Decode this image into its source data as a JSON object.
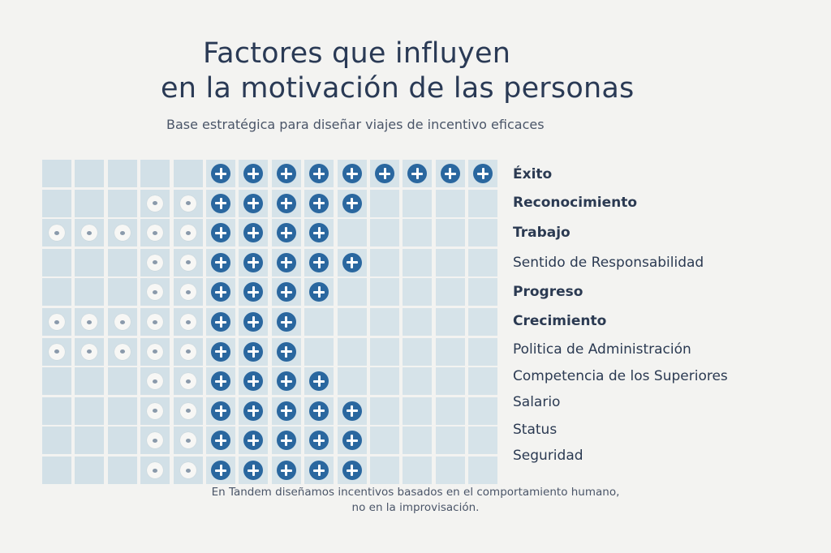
{
  "title_line1": "Factores que influyen",
  "title_line2": "en la motivación de las personas",
  "subtitle": "Base estratégica para diseñar viajes de incentivo eficaces",
  "footer_line1": "En Tandem diseñamos incentivos basados en el comportamiento humano,",
  "footer_line2": "no en la improvisación.",
  "colors": {
    "plus": "#2a679f",
    "cell": "#d6e3e9",
    "dot": "#f7f7f5",
    "text": "#2b3a52"
  },
  "chart_data": {
    "type": "table",
    "title": "Factores que influyen en la motivación de las personas",
    "columns_total": 14,
    "neutral_columns": 5,
    "positive_columns": 9,
    "legend": {
      "dot": "neutral-factor-icon",
      "plus": "positive-factor-icon"
    },
    "rows": [
      {
        "label": "Éxito",
        "bold": true,
        "dots": 0,
        "plus": 9
      },
      {
        "label": "Reconocimiento",
        "bold": true,
        "dots": 2,
        "plus": 5
      },
      {
        "label": "Trabajo",
        "bold": true,
        "dots": 5,
        "plus": 4
      },
      {
        "label": "Sentido de Responsabilidad",
        "bold": false,
        "dots": 2,
        "plus": 5
      },
      {
        "label": "Progreso",
        "bold": true,
        "dots": 2,
        "plus": 4
      },
      {
        "label": "Crecimiento",
        "bold": true,
        "dots": 5,
        "plus": 3
      },
      {
        "label": "Politica de Administración",
        "bold": false,
        "dots": 5,
        "plus": 3
      },
      {
        "label": "Competencia de los Superiores",
        "bold": false,
        "dots": 2,
        "plus": 4
      },
      {
        "label": "Salario",
        "bold": false,
        "dots": 2,
        "plus": 5
      },
      {
        "label": "Status",
        "bold": false,
        "dots": 2,
        "plus": 5
      },
      {
        "label": "Seguridad",
        "bold": false,
        "dots": 2,
        "plus": 5
      }
    ]
  }
}
